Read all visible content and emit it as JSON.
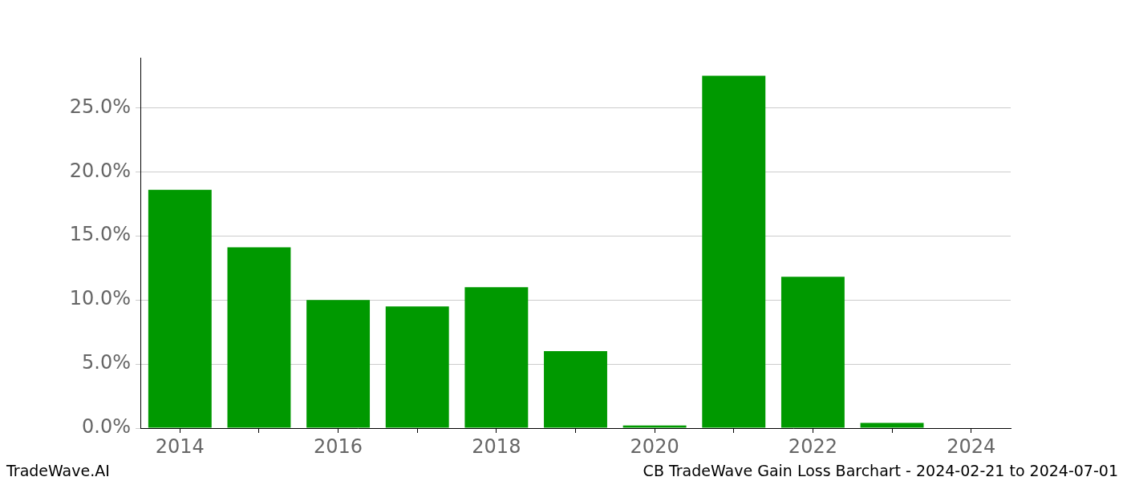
{
  "chart_data": {
    "type": "bar",
    "title": "CB TradeWave Gain Loss Barchart - 2024-02-21 to 2024-07-01",
    "source": "TradeWave.AI",
    "categories": [
      "2014",
      null,
      "2016",
      null,
      "2018",
      null,
      "2020",
      null,
      "2022",
      null,
      "2024"
    ],
    "values": [
      18.6,
      14.1,
      10.0,
      9.5,
      11.0,
      6.0,
      0.2,
      27.5,
      11.8,
      0.4,
      0
    ],
    "color": "#009900",
    "ylim": [
      0,
      28.9
    ],
    "yticks": [
      {
        "value": 0,
        "label": "0.0%"
      },
      {
        "value": 5,
        "label": "5.0%"
      },
      {
        "value": 10,
        "label": "10.0%"
      },
      {
        "value": 15,
        "label": "15.0%"
      },
      {
        "value": 20,
        "label": "20.0%"
      },
      {
        "value": 25,
        "label": "25.0%"
      }
    ],
    "grid": true
  }
}
